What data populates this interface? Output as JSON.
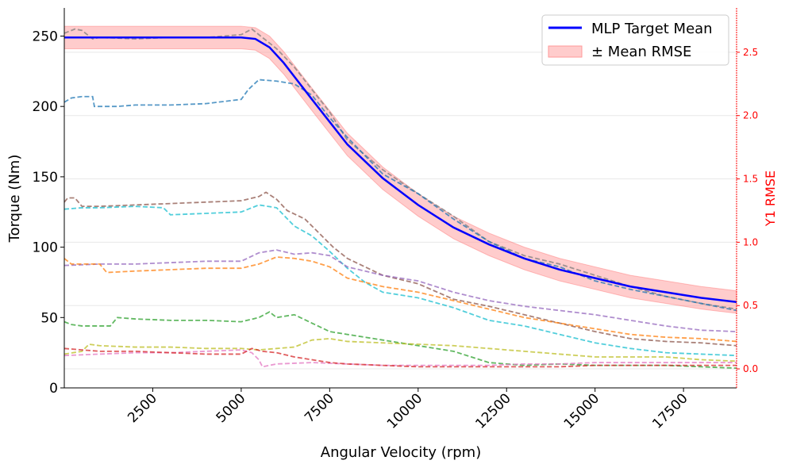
{
  "chart_data": {
    "type": "line",
    "xlabel": "Angular Velocity (rpm)",
    "ylabel": "Torque (Nm)",
    "y2label": "Y1 RMSE",
    "xlim": [
      0,
      19000
    ],
    "ylim": [
      0,
      270
    ],
    "y2lim": [
      -0.15,
      2.85
    ],
    "x_ticks": [
      2500,
      5000,
      7500,
      10000,
      12500,
      15000,
      17500
    ],
    "y_ticks": [
      0,
      50,
      100,
      150,
      200,
      250
    ],
    "y2_ticks": [
      0.0,
      0.5,
      1.0,
      1.5,
      2.0,
      2.5
    ],
    "y2_tick_labels": [
      "0.0",
      "0.5",
      "1.0",
      "1.5",
      "2.0",
      "2.5"
    ],
    "legend_position": "top-right",
    "legend": [
      {
        "label": "MLP Target Mean",
        "color": "#0000ff",
        "kind": "line"
      },
      {
        "label": "± Mean RMSE",
        "color": "#ffcccc",
        "kind": "band"
      }
    ],
    "colors": {
      "mean": "#0000ff",
      "band_fill": "#ff9999",
      "band_edge": "#ff6666",
      "y2_axis": "#ff0000",
      "grid": "#e8e8e8"
    },
    "band_half_width": 8,
    "mean": {
      "x": [
        0,
        1000,
        2000,
        3000,
        4000,
        5000,
        5400,
        5800,
        6200,
        6600,
        7000,
        7500,
        8000,
        9000,
        10000,
        11000,
        12000,
        13000,
        14000,
        15000,
        16000,
        17000,
        18000,
        19000
      ],
      "y": [
        249,
        249,
        249,
        249,
        249,
        249,
        248,
        242,
        231,
        218,
        205,
        189,
        173,
        149,
        130,
        114,
        102,
        92,
        84,
        78,
        72,
        68,
        64,
        61
      ]
    },
    "rmse_gridlines": [
      0.0,
      0.5,
      1.0,
      1.5,
      2.0,
      2.5
    ],
    "series": [
      {
        "color": "#7f7f7f",
        "x": [
          0,
          300,
          500,
          800,
          1000,
          2000,
          3000,
          4000,
          5000,
          5300,
          5600,
          6000,
          6500,
          7000,
          7500,
          8000,
          9000,
          10000,
          11000,
          12000,
          13000,
          14000,
          15000,
          16000,
          17000,
          18000,
          19000
        ],
        "y": [
          252,
          255,
          254,
          248,
          249,
          248,
          249,
          249,
          251,
          255,
          249,
          241,
          228,
          212,
          196,
          176,
          155,
          138,
          122,
          104,
          94,
          88,
          80,
          72,
          65,
          60,
          56
        ]
      },
      {
        "color": "#1f77b4",
        "x": [
          0,
          200,
          500,
          800,
          850,
          1500,
          2000,
          3000,
          4000,
          5000,
          5200,
          5500,
          6000,
          6500,
          7000,
          7500,
          8000,
          9000,
          10000,
          11000,
          12000,
          13000,
          14000,
          15000,
          16000,
          17000,
          18000,
          19000
        ],
        "y": [
          203,
          206,
          207,
          207,
          200,
          200,
          201,
          201,
          202,
          205,
          212,
          219,
          218,
          216,
          208,
          192,
          178,
          152,
          138,
          120,
          104,
          92,
          86,
          76,
          70,
          65,
          60,
          55
        ]
      },
      {
        "color": "#8c564b",
        "x": [
          0,
          100,
          300,
          500,
          1000,
          2000,
          3000,
          4000,
          5000,
          5500,
          5700,
          6000,
          6300,
          6800,
          7200,
          7600,
          8000,
          9000,
          10000,
          11000,
          12000,
          13000,
          14000,
          15000,
          16000,
          17000,
          18000,
          19000
        ],
        "y": [
          132,
          135,
          135,
          129,
          129,
          130,
          131,
          132,
          133,
          136,
          139,
          134,
          126,
          120,
          110,
          100,
          92,
          80,
          74,
          63,
          58,
          52,
          46,
          40,
          35,
          33,
          32,
          30
        ]
      },
      {
        "color": "#17becf",
        "x": [
          0,
          500,
          1000,
          2000,
          2800,
          3000,
          4000,
          5000,
          5500,
          6000,
          6500,
          7000,
          7500,
          8000,
          8500,
          9000,
          10000,
          11000,
          12000,
          13000,
          14000,
          15000,
          16000,
          17000,
          18000,
          19000
        ],
        "y": [
          127,
          128,
          128,
          129,
          128,
          123,
          124,
          125,
          130,
          128,
          115,
          108,
          97,
          85,
          75,
          68,
          64,
          57,
          48,
          44,
          38,
          32,
          28,
          25,
          24,
          23
        ]
      },
      {
        "color": "#9467bd",
        "x": [
          0,
          1000,
          2000,
          3000,
          4000,
          5000,
          5500,
          6000,
          6500,
          7000,
          7500,
          8000,
          9000,
          10000,
          11000,
          12000,
          13000,
          14000,
          15000,
          16000,
          17000,
          18000,
          19000
        ],
        "y": [
          87,
          88,
          88,
          89,
          90,
          90,
          96,
          98,
          95,
          96,
          94,
          86,
          80,
          76,
          68,
          62,
          58,
          55,
          52,
          48,
          44,
          41,
          40
        ]
      },
      {
        "color": "#ff7f0e",
        "x": [
          0,
          200,
          1000,
          1200,
          2000,
          3000,
          4000,
          5000,
          5500,
          6000,
          6500,
          7000,
          7500,
          8000,
          9000,
          10000,
          11000,
          12000,
          13000,
          14000,
          15000,
          16000,
          17000,
          18000,
          19000
        ],
        "y": [
          92,
          88,
          88,
          82,
          83,
          84,
          85,
          85,
          88,
          93,
          92,
          90,
          86,
          78,
          72,
          68,
          62,
          56,
          50,
          46,
          42,
          38,
          36,
          35,
          33
        ]
      },
      {
        "color": "#2ca02c",
        "x": [
          0,
          200,
          500,
          1300,
          1500,
          2000,
          3000,
          4000,
          5000,
          5500,
          5800,
          6000,
          6500,
          7000,
          7500,
          8000,
          9000,
          10000,
          11000,
          12000,
          13000,
          14000,
          15000,
          16000,
          17000,
          18000,
          19000
        ],
        "y": [
          47,
          45,
          44,
          44,
          50,
          49,
          48,
          48,
          47,
          50,
          54,
          50,
          52,
          46,
          40,
          38,
          34,
          30,
          26,
          18,
          16,
          17,
          16,
          16,
          16,
          15,
          14
        ]
      },
      {
        "color": "#bcbd22",
        "x": [
          0,
          500,
          700,
          1000,
          2000,
          3000,
          4000,
          5000,
          5500,
          6000,
          6500,
          7000,
          7500,
          8000,
          9000,
          10000,
          11000,
          12000,
          13000,
          14000,
          15000,
          16000,
          17000,
          18000,
          19000
        ],
        "y": [
          24,
          26,
          31,
          30,
          29,
          29,
          28,
          28,
          27,
          28,
          29,
          34,
          35,
          33,
          32,
          31,
          30,
          28,
          26,
          24,
          22,
          22,
          22,
          20,
          19
        ]
      },
      {
        "color": "#e377c2",
        "x": [
          0,
          1000,
          2000,
          3000,
          4000,
          5000,
          5300,
          5500,
          5600,
          6000,
          7000,
          8000,
          9000,
          10000,
          11000,
          12000,
          13000,
          14000,
          15000,
          16000,
          17000,
          18000,
          19000
        ],
        "y": [
          23,
          24,
          25,
          25,
          26,
          27,
          25,
          20,
          15,
          17,
          18,
          17,
          16,
          16,
          16,
          16,
          17,
          17,
          18,
          18,
          18,
          18,
          18
        ]
      },
      {
        "color": "#d62728",
        "x": [
          0,
          500,
          1000,
          2000,
          3000,
          4000,
          5000,
          5300,
          5600,
          6000,
          6500,
          7000,
          7500,
          8000,
          9000,
          10000,
          11000,
          12000,
          13000,
          14000,
          15000,
          16000,
          17000,
          18000,
          19000
        ],
        "y": [
          28,
          27,
          26,
          26,
          25,
          24,
          24,
          28,
          26,
          25,
          22,
          20,
          18,
          17,
          16,
          15,
          15,
          15,
          15,
          15,
          16,
          16,
          16,
          16,
          16
        ]
      }
    ]
  }
}
